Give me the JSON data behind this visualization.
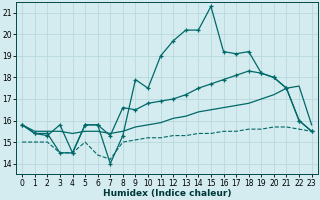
{
  "xlabel": "Humidex (Indice chaleur)",
  "xlim": [
    -0.5,
    23.5
  ],
  "ylim": [
    13.5,
    21.5
  ],
  "yticks": [
    14,
    15,
    16,
    17,
    18,
    19,
    20,
    21
  ],
  "xticks": [
    0,
    1,
    2,
    3,
    4,
    5,
    6,
    7,
    8,
    9,
    10,
    11,
    12,
    13,
    14,
    15,
    16,
    17,
    18,
    19,
    20,
    21,
    22,
    23
  ],
  "background_color": "#d4ecef",
  "grid_color": "#b8d8dc",
  "line_color": "#006868",
  "line1_y": [
    15.8,
    15.4,
    15.4,
    14.5,
    14.5,
    15.8,
    15.8,
    14.0,
    15.3,
    17.9,
    17.5,
    19.0,
    19.7,
    20.2,
    20.2,
    21.3,
    19.2,
    19.1,
    19.2,
    18.2,
    18.0,
    17.5,
    16.0,
    15.5
  ],
  "line2_y": [
    15.8,
    15.4,
    15.3,
    15.8,
    14.5,
    15.8,
    15.8,
    15.3,
    16.6,
    16.5,
    16.8,
    16.9,
    17.0,
    17.2,
    17.5,
    17.7,
    17.9,
    18.1,
    18.3,
    18.2,
    18.0,
    17.5,
    16.0,
    15.5
  ],
  "line3_y": [
    15.8,
    15.5,
    15.5,
    15.5,
    15.4,
    15.5,
    15.5,
    15.4,
    15.5,
    15.7,
    15.8,
    15.9,
    16.1,
    16.2,
    16.4,
    16.5,
    16.6,
    16.7,
    16.8,
    17.0,
    17.2,
    17.5,
    17.6,
    15.8
  ],
  "line4_y": [
    15.0,
    15.0,
    15.0,
    14.5,
    14.5,
    15.0,
    14.4,
    14.2,
    15.0,
    15.1,
    15.2,
    15.2,
    15.3,
    15.3,
    15.4,
    15.4,
    15.5,
    15.5,
    15.6,
    15.6,
    15.7,
    15.7,
    15.6,
    15.5
  ]
}
